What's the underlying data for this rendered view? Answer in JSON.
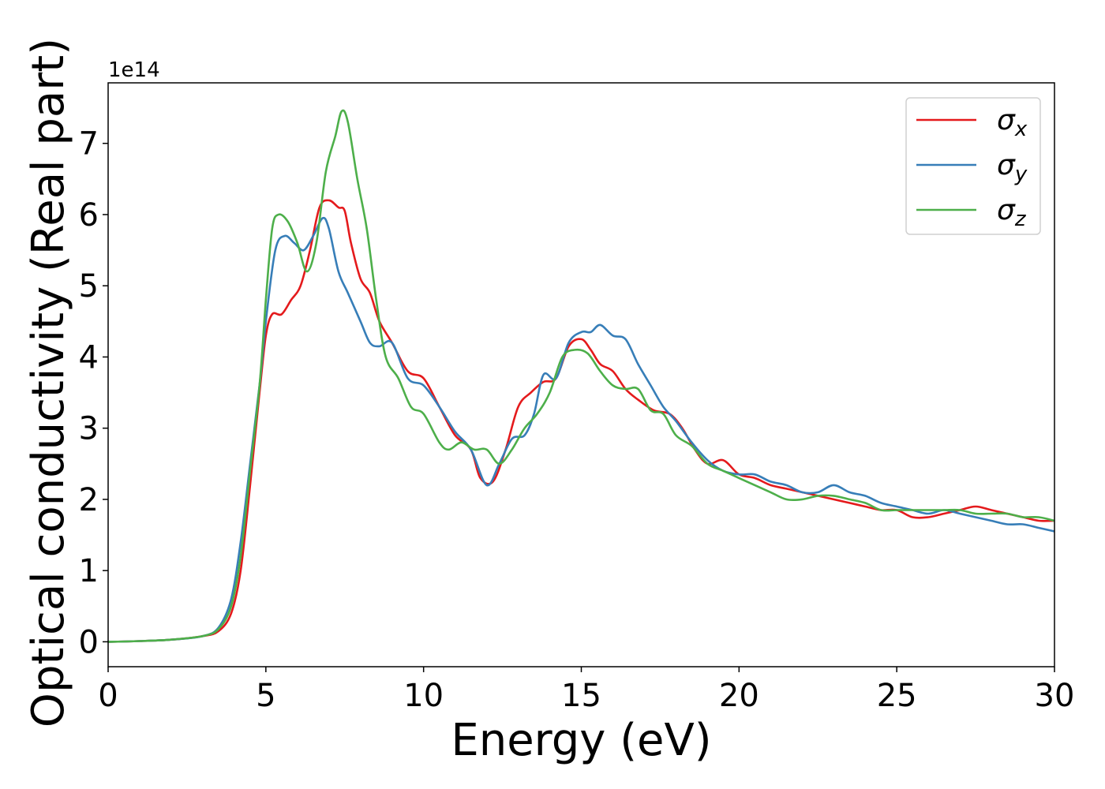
{
  "chart_data": {
    "type": "line",
    "title": "",
    "xlabel": "Energy (eV)",
    "ylabel": "Optical conductivity (Real part)",
    "y_scale_label": "1e14",
    "xlim": [
      0,
      30
    ],
    "ylim": [
      -0.35,
      7.85
    ],
    "x_ticks": [
      0,
      5,
      10,
      15,
      20,
      25,
      30
    ],
    "y_ticks": [
      0,
      1,
      2,
      3,
      4,
      5,
      6,
      7
    ],
    "grid": false,
    "legend_position": "top-right",
    "series": [
      {
        "name": "σ_x",
        "legend_base": "σ",
        "legend_sub": "x",
        "color": "#e41a1c",
        "points": [
          [
            0,
            0
          ],
          [
            1,
            0.01
          ],
          [
            2,
            0.03
          ],
          [
            3,
            0.08
          ],
          [
            3.5,
            0.15
          ],
          [
            3.9,
            0.4
          ],
          [
            4.2,
            1.0
          ],
          [
            4.5,
            2.2
          ],
          [
            4.8,
            3.5
          ],
          [
            5.0,
            4.3
          ],
          [
            5.2,
            4.6
          ],
          [
            5.5,
            4.6
          ],
          [
            5.8,
            4.8
          ],
          [
            6.1,
            5.0
          ],
          [
            6.4,
            5.5
          ],
          [
            6.7,
            6.1
          ],
          [
            7.0,
            6.2
          ],
          [
            7.3,
            6.1
          ],
          [
            7.5,
            6.05
          ],
          [
            7.7,
            5.6
          ],
          [
            8.0,
            5.1
          ],
          [
            8.3,
            4.9
          ],
          [
            8.6,
            4.5
          ],
          [
            9.0,
            4.2
          ],
          [
            9.5,
            3.8
          ],
          [
            10.0,
            3.7
          ],
          [
            10.5,
            3.3
          ],
          [
            11.0,
            2.9
          ],
          [
            11.5,
            2.7
          ],
          [
            11.8,
            2.3
          ],
          [
            12.2,
            2.25
          ],
          [
            12.6,
            2.7
          ],
          [
            13.0,
            3.3
          ],
          [
            13.4,
            3.5
          ],
          [
            13.8,
            3.65
          ],
          [
            14.2,
            3.7
          ],
          [
            14.6,
            4.15
          ],
          [
            15.0,
            4.25
          ],
          [
            15.3,
            4.1
          ],
          [
            15.6,
            3.9
          ],
          [
            16.0,
            3.8
          ],
          [
            16.4,
            3.55
          ],
          [
            16.8,
            3.4
          ],
          [
            17.3,
            3.25
          ],
          [
            17.8,
            3.2
          ],
          [
            18.2,
            3.0
          ],
          [
            18.6,
            2.7
          ],
          [
            19.0,
            2.5
          ],
          [
            19.5,
            2.55
          ],
          [
            20.0,
            2.35
          ],
          [
            20.5,
            2.3
          ],
          [
            21.0,
            2.2
          ],
          [
            21.5,
            2.15
          ],
          [
            22.0,
            2.1
          ],
          [
            22.5,
            2.05
          ],
          [
            23.0,
            2.0
          ],
          [
            23.5,
            1.95
          ],
          [
            24.0,
            1.9
          ],
          [
            24.5,
            1.85
          ],
          [
            25.0,
            1.85
          ],
          [
            25.5,
            1.75
          ],
          [
            26.0,
            1.75
          ],
          [
            26.5,
            1.8
          ],
          [
            27.0,
            1.85
          ],
          [
            27.5,
            1.9
          ],
          [
            28.0,
            1.85
          ],
          [
            28.5,
            1.8
          ],
          [
            29.0,
            1.75
          ],
          [
            29.5,
            1.7
          ],
          [
            30.0,
            1.7
          ]
        ]
      },
      {
        "name": "σ_y",
        "legend_base": "σ",
        "legend_sub": "y",
        "color": "#377eb8",
        "points": [
          [
            0,
            0
          ],
          [
            1,
            0.01
          ],
          [
            2,
            0.03
          ],
          [
            3,
            0.08
          ],
          [
            3.5,
            0.2
          ],
          [
            3.9,
            0.6
          ],
          [
            4.2,
            1.4
          ],
          [
            4.5,
            2.5
          ],
          [
            4.8,
            3.6
          ],
          [
            5.0,
            4.5
          ],
          [
            5.3,
            5.5
          ],
          [
            5.6,
            5.7
          ],
          [
            5.9,
            5.6
          ],
          [
            6.2,
            5.5
          ],
          [
            6.5,
            5.7
          ],
          [
            6.8,
            5.95
          ],
          [
            7.0,
            5.8
          ],
          [
            7.3,
            5.2
          ],
          [
            7.6,
            4.9
          ],
          [
            8.0,
            4.5
          ],
          [
            8.3,
            4.2
          ],
          [
            8.6,
            4.15
          ],
          [
            9.0,
            4.2
          ],
          [
            9.5,
            3.7
          ],
          [
            10.0,
            3.6
          ],
          [
            10.5,
            3.3
          ],
          [
            11.0,
            2.95
          ],
          [
            11.5,
            2.7
          ],
          [
            12.0,
            2.2
          ],
          [
            12.4,
            2.5
          ],
          [
            12.8,
            2.85
          ],
          [
            13.2,
            2.9
          ],
          [
            13.5,
            3.2
          ],
          [
            13.8,
            3.75
          ],
          [
            14.2,
            3.7
          ],
          [
            14.6,
            4.2
          ],
          [
            15.0,
            4.35
          ],
          [
            15.3,
            4.35
          ],
          [
            15.6,
            4.45
          ],
          [
            16.0,
            4.3
          ],
          [
            16.4,
            4.25
          ],
          [
            16.8,
            3.9
          ],
          [
            17.2,
            3.6
          ],
          [
            17.6,
            3.3
          ],
          [
            18.0,
            3.1
          ],
          [
            18.5,
            2.8
          ],
          [
            19.0,
            2.55
          ],
          [
            19.5,
            2.4
          ],
          [
            20.0,
            2.35
          ],
          [
            20.5,
            2.35
          ],
          [
            21.0,
            2.25
          ],
          [
            21.5,
            2.2
          ],
          [
            22.0,
            2.1
          ],
          [
            22.5,
            2.1
          ],
          [
            23.0,
            2.2
          ],
          [
            23.5,
            2.1
          ],
          [
            24.0,
            2.05
          ],
          [
            24.5,
            1.95
          ],
          [
            25.0,
            1.9
          ],
          [
            25.5,
            1.85
          ],
          [
            26.0,
            1.8
          ],
          [
            26.5,
            1.85
          ],
          [
            27.0,
            1.8
          ],
          [
            27.5,
            1.75
          ],
          [
            28.0,
            1.7
          ],
          [
            28.5,
            1.65
          ],
          [
            29.0,
            1.65
          ],
          [
            29.5,
            1.6
          ],
          [
            30.0,
            1.55
          ]
        ]
      },
      {
        "name": "σ_z",
        "legend_base": "σ",
        "legend_sub": "z",
        "color": "#4daf4a",
        "points": [
          [
            0,
            0
          ],
          [
            1,
            0.01
          ],
          [
            2,
            0.03
          ],
          [
            3,
            0.08
          ],
          [
            3.5,
            0.18
          ],
          [
            3.9,
            0.5
          ],
          [
            4.2,
            1.2
          ],
          [
            4.5,
            2.4
          ],
          [
            4.8,
            3.6
          ],
          [
            5.0,
            4.8
          ],
          [
            5.2,
            5.8
          ],
          [
            5.4,
            6.0
          ],
          [
            5.7,
            5.9
          ],
          [
            6.0,
            5.6
          ],
          [
            6.3,
            5.2
          ],
          [
            6.6,
            5.6
          ],
          [
            6.9,
            6.6
          ],
          [
            7.2,
            7.1
          ],
          [
            7.4,
            7.45
          ],
          [
            7.6,
            7.3
          ],
          [
            7.9,
            6.5
          ],
          [
            8.2,
            5.8
          ],
          [
            8.5,
            4.8
          ],
          [
            8.8,
            4.0
          ],
          [
            9.2,
            3.7
          ],
          [
            9.6,
            3.3
          ],
          [
            10.0,
            3.2
          ],
          [
            10.5,
            2.8
          ],
          [
            10.8,
            2.7
          ],
          [
            11.2,
            2.8
          ],
          [
            11.6,
            2.7
          ],
          [
            12.0,
            2.7
          ],
          [
            12.4,
            2.5
          ],
          [
            12.8,
            2.7
          ],
          [
            13.2,
            3.0
          ],
          [
            13.6,
            3.2
          ],
          [
            14.0,
            3.5
          ],
          [
            14.4,
            4.0
          ],
          [
            14.8,
            4.1
          ],
          [
            15.2,
            4.05
          ],
          [
            15.6,
            3.8
          ],
          [
            16.0,
            3.6
          ],
          [
            16.4,
            3.55
          ],
          [
            16.8,
            3.55
          ],
          [
            17.2,
            3.25
          ],
          [
            17.6,
            3.2
          ],
          [
            18.0,
            2.9
          ],
          [
            18.5,
            2.75
          ],
          [
            19.0,
            2.5
          ],
          [
            19.5,
            2.4
          ],
          [
            20.0,
            2.3
          ],
          [
            20.5,
            2.2
          ],
          [
            21.0,
            2.1
          ],
          [
            21.5,
            2.0
          ],
          [
            22.0,
            2.0
          ],
          [
            22.5,
            2.05
          ],
          [
            23.0,
            2.05
          ],
          [
            23.5,
            2.0
          ],
          [
            24.0,
            1.95
          ],
          [
            24.5,
            1.85
          ],
          [
            25.0,
            1.85
          ],
          [
            25.5,
            1.85
          ],
          [
            26.0,
            1.85
          ],
          [
            26.5,
            1.85
          ],
          [
            27.0,
            1.85
          ],
          [
            27.5,
            1.8
          ],
          [
            28.0,
            1.8
          ],
          [
            28.5,
            1.8
          ],
          [
            29.0,
            1.75
          ],
          [
            29.5,
            1.75
          ],
          [
            30.0,
            1.7
          ]
        ]
      }
    ]
  }
}
